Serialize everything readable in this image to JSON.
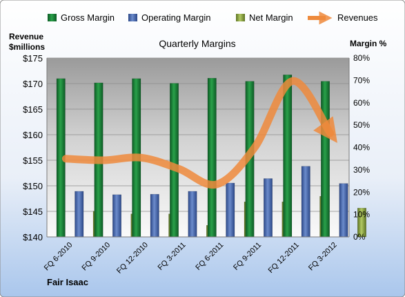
{
  "chart_data": {
    "type": "bar",
    "title": "Quarterly Margins",
    "company": "Fair Isaac",
    "categories": [
      "FQ 6-2010",
      "FQ 9-2010",
      "FQ 12-2010",
      "FQ 3-2011",
      "FQ 6-2011",
      "FQ 9-2011",
      "FQ 12-2011",
      "FQ 3-2012"
    ],
    "left_axis": {
      "label_line1": "Revenue",
      "label_line2": "$millions",
      "min": 140,
      "max": 175,
      "step": 5,
      "ticks": [
        "$140",
        "$145",
        "$150",
        "$155",
        "$160",
        "$165",
        "$170",
        "$175"
      ]
    },
    "right_axis": {
      "label": "Margin %",
      "min": 0,
      "max": 80,
      "step": 10,
      "ticks": [
        "0%",
        "10%",
        "20%",
        "30%",
        "40%",
        "50%",
        "60%",
        "70%",
        "80%"
      ]
    },
    "series": [
      {
        "name": "Gross Margin",
        "axis": "right",
        "kind": "bar",
        "color": "#1e8a3c",
        "values": [
          70.8,
          68.9,
          70.8,
          68.7,
          71.0,
          69.6,
          72.5,
          69.6
        ]
      },
      {
        "name": "Operating Margin",
        "axis": "right",
        "kind": "bar",
        "color": "#4a69b3",
        "values": [
          20.4,
          18.9,
          19.1,
          20.4,
          24.1,
          26.1,
          31.6,
          23.9
        ]
      },
      {
        "name": "Net Margin",
        "axis": "right",
        "kind": "bar",
        "color": "#8faa3e",
        "values": [
          11.5,
          10.3,
          10.3,
          5.2,
          15.7,
          15.7,
          18.2,
          12.9
        ]
      },
      {
        "name": "Revenues",
        "axis": "left",
        "kind": "line",
        "color": "#ee8a3c",
        "values": [
          155.3,
          155.0,
          155.5,
          153.3,
          150.3,
          157.5,
          170.5,
          160.3
        ]
      }
    ],
    "legend_position": "top",
    "grid": true
  }
}
